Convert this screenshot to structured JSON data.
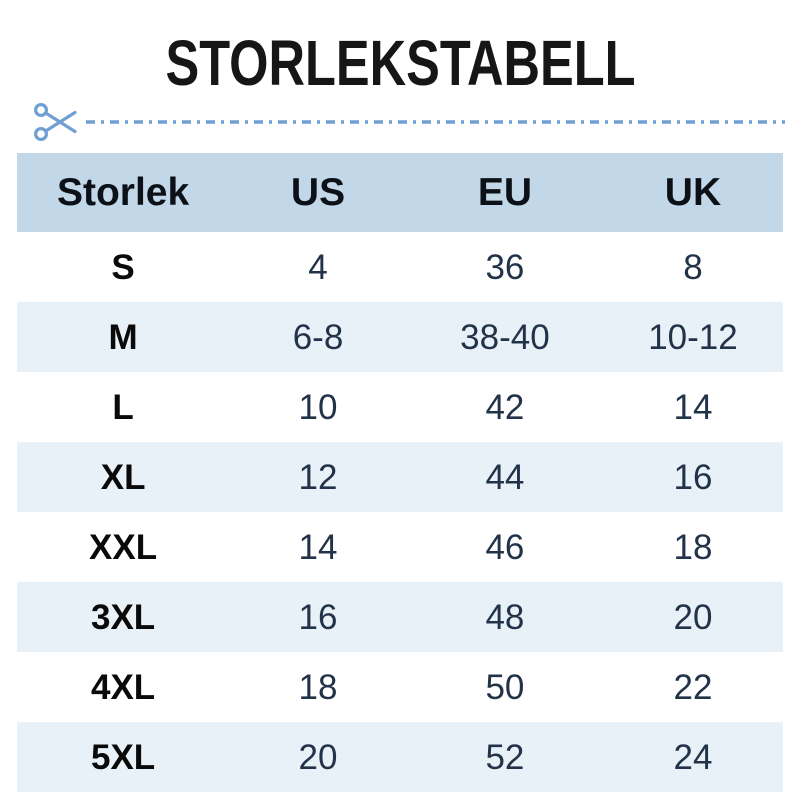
{
  "title": "STORLEKSTABELL",
  "cut_line": {
    "icon": "scissors-icon",
    "style": "dash-dot",
    "color": "#6f9fd3"
  },
  "colors": {
    "header_bg": "#c2d8e8",
    "alt_row_bg": "#e8f1f7",
    "number_text": "#223349",
    "label_text": "#0a0a0a",
    "title_text": "#161616",
    "accent": "#6f9fd3"
  },
  "table": {
    "columns": [
      "Storlek",
      "US",
      "EU",
      "UK"
    ],
    "rows": [
      {
        "size": "S",
        "us": "4",
        "eu": "36",
        "uk": "8"
      },
      {
        "size": "M",
        "us": "6-8",
        "eu": "38-40",
        "uk": "10-12"
      },
      {
        "size": "L",
        "us": "10",
        "eu": "42",
        "uk": "14"
      },
      {
        "size": "XL",
        "us": "12",
        "eu": "44",
        "uk": "16"
      },
      {
        "size": "XXL",
        "us": "14",
        "eu": "46",
        "uk": "18"
      },
      {
        "size": "3XL",
        "us": "16",
        "eu": "48",
        "uk": "20"
      },
      {
        "size": "4XL",
        "us": "18",
        "eu": "50",
        "uk": "22"
      },
      {
        "size": "5XL",
        "us": "20",
        "eu": "52",
        "uk": "24"
      }
    ]
  },
  "chart_data": {
    "type": "table",
    "title": "STORLEKSTABELL",
    "columns": [
      "Storlek",
      "US",
      "EU",
      "UK"
    ],
    "rows": [
      [
        "S",
        "4",
        "36",
        "8"
      ],
      [
        "M",
        "6-8",
        "38-40",
        "10-12"
      ],
      [
        "L",
        "10",
        "42",
        "14"
      ],
      [
        "XL",
        "12",
        "44",
        "16"
      ],
      [
        "XXL",
        "14",
        "46",
        "18"
      ],
      [
        "3XL",
        "16",
        "48",
        "20"
      ],
      [
        "4XL",
        "18",
        "50",
        "22"
      ],
      [
        "5XL",
        "20",
        "52",
        "24"
      ]
    ]
  }
}
